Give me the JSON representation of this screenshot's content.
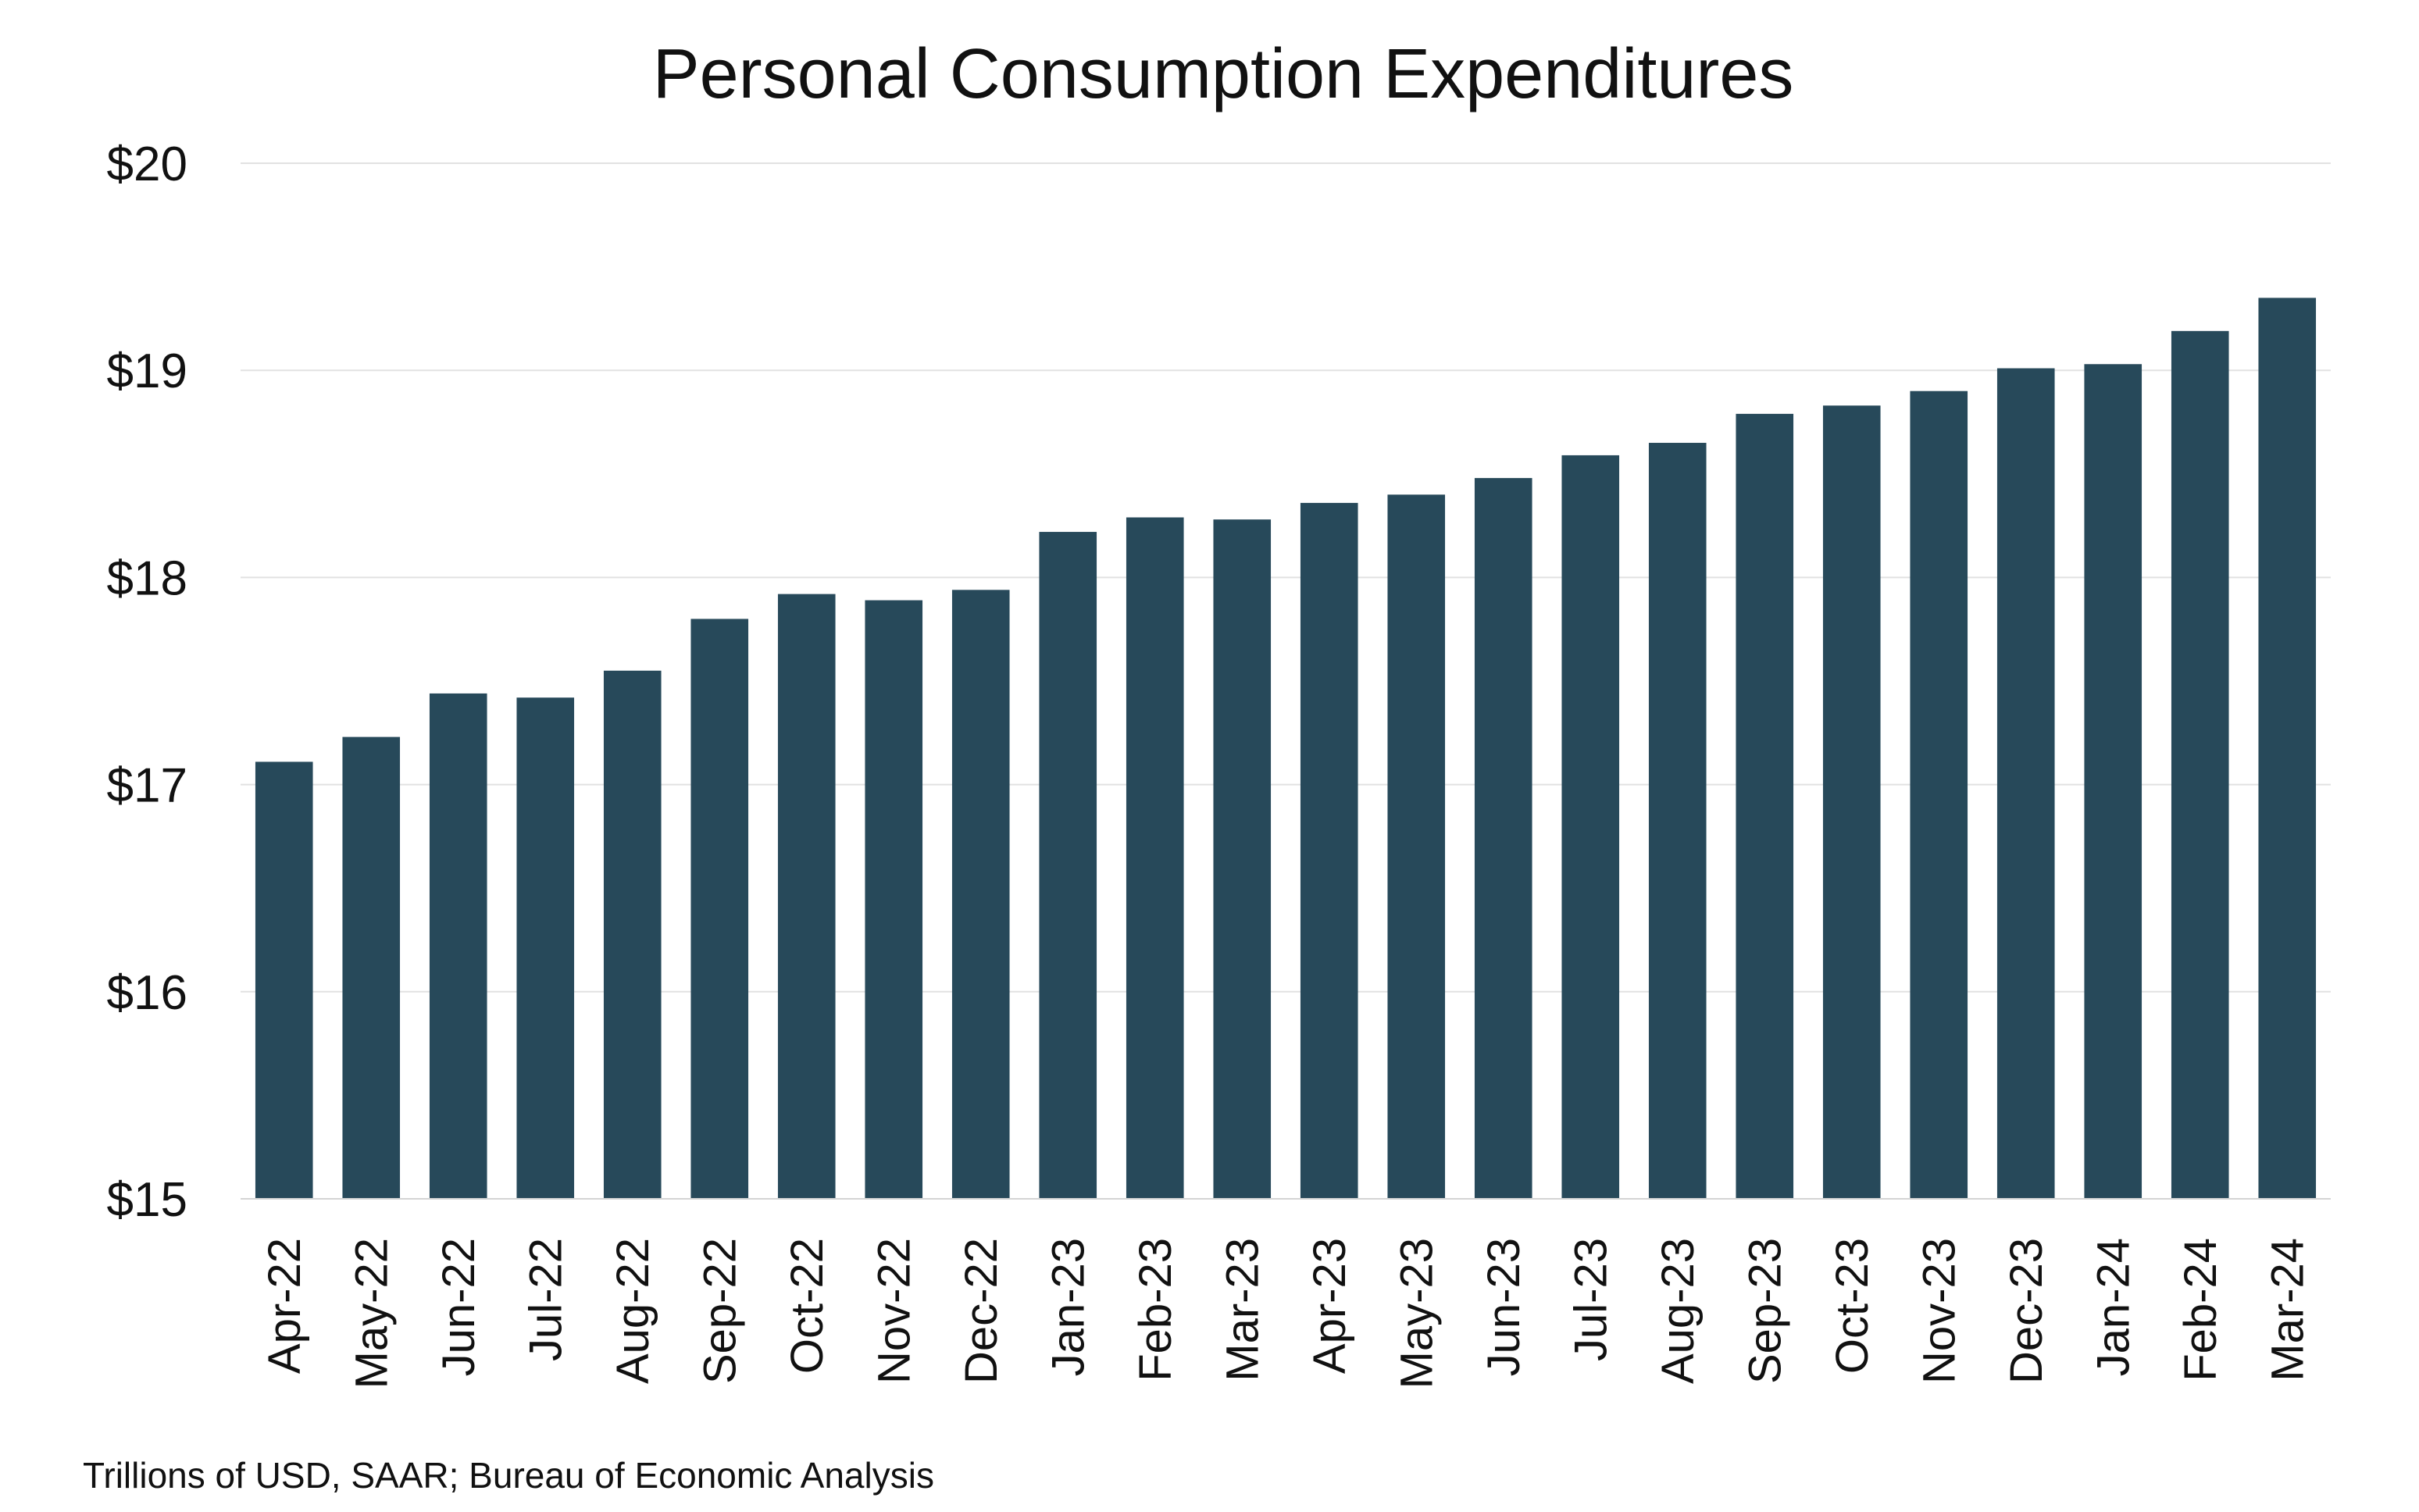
{
  "chart_data": {
    "type": "bar",
    "title": "Personal Consumption Expenditures",
    "xlabel": "",
    "ylabel": "",
    "note": "Trillions of USD, SAAR; Bureau of Economic Analysis",
    "ylim": [
      15,
      20
    ],
    "yticks": [
      15,
      16,
      17,
      18,
      19,
      20
    ],
    "ytick_labels": [
      "$15",
      "$16",
      "$17",
      "$18",
      "$19",
      "$20"
    ],
    "grid": true,
    "legend": "none",
    "bar_color": "#27495a",
    "categories": [
      "Apr-22",
      "May-22",
      "Jun-22",
      "Jul-22",
      "Aug-22",
      "Sep-22",
      "Oct-22",
      "Nov-22",
      "Dec-22",
      "Jan-23",
      "Feb-23",
      "Mar-23",
      "Apr-23",
      "May-23",
      "Jun-23",
      "Jul-23",
      "Aug-23",
      "Sep-23",
      "Oct-23",
      "Nov-23",
      "Dec-23",
      "Jan-24",
      "Feb-24",
      "Mar-24"
    ],
    "values": [
      17.11,
      17.23,
      17.44,
      17.42,
      17.55,
      17.8,
      17.92,
      17.89,
      17.94,
      18.22,
      18.29,
      18.28,
      18.36,
      18.4,
      18.48,
      18.59,
      18.65,
      18.79,
      18.83,
      18.9,
      19.01,
      19.03,
      19.19,
      19.35
    ]
  }
}
